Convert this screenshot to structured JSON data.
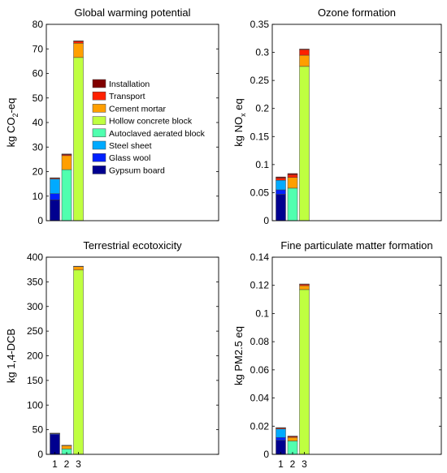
{
  "chart_data": [
    {
      "type": "bar",
      "stacked": true,
      "title": "Global warming potential",
      "ylabel": "kg CO",
      "ylabel_sub": "2",
      "ylabel_suffix": "-eq",
      "ylim": [
        0,
        80
      ],
      "yticks": [
        "0",
        "10",
        "20",
        "30",
        "40",
        "50",
        "60",
        "70",
        "80"
      ],
      "ytick_values": [
        0,
        10,
        20,
        30,
        40,
        50,
        60,
        70,
        80
      ],
      "categories": [
        "1",
        "2",
        "3"
      ],
      "show_xticks": false,
      "series": [
        {
          "name": "Gypsum board",
          "color": "#00008f",
          "values": [
            8.5,
            0,
            0
          ]
        },
        {
          "name": "Glass wool",
          "color": "#0020ff",
          "values": [
            2.5,
            0,
            0
          ]
        },
        {
          "name": "Steel sheet",
          "color": "#00aaff",
          "values": [
            6,
            0,
            0
          ]
        },
        {
          "name": "Autoclaved aerated block",
          "color": "#50ffaf",
          "values": [
            0,
            20.8,
            0
          ]
        },
        {
          "name": "Hollow concrete block",
          "color": "#bfff40",
          "values": [
            0,
            0,
            66.5
          ]
        },
        {
          "name": "Cement mortar",
          "color": "#ff9f00",
          "values": [
            0,
            5.7,
            5.8
          ]
        },
        {
          "name": "Transport",
          "color": "#ff2000",
          "values": [
            0.3,
            0.4,
            0.8
          ]
        },
        {
          "name": "Installation",
          "color": "#800000",
          "values": [
            0.2,
            0.3,
            0.2
          ]
        }
      ]
    },
    {
      "type": "bar",
      "stacked": true,
      "title": "Ozone formation",
      "ylabel": "kg NO",
      "ylabel_sub": "x",
      "ylabel_suffix": " eq",
      "ylim": [
        0,
        0.35
      ],
      "yticks": [
        "0",
        "0.05",
        "0.1",
        "0.15",
        "0.2",
        "0.25",
        "0.3",
        "0.35"
      ],
      "ytick_values": [
        0,
        0.05,
        0.1,
        0.15,
        0.2,
        0.25,
        0.3,
        0.35
      ],
      "categories": [
        "1",
        "2",
        "3"
      ],
      "show_xticks": false,
      "series": [
        {
          "name": "Gypsum board",
          "color": "#00008f",
          "values": [
            0.047,
            0,
            0
          ]
        },
        {
          "name": "Glass wool",
          "color": "#0020ff",
          "values": [
            0.008,
            0,
            0
          ]
        },
        {
          "name": "Steel sheet",
          "color": "#00aaff",
          "values": [
            0.017,
            0,
            0
          ]
        },
        {
          "name": "Autoclaved aerated block",
          "color": "#50ffaf",
          "values": [
            0,
            0.058,
            0
          ]
        },
        {
          "name": "Hollow concrete block",
          "color": "#bfff40",
          "values": [
            0,
            0,
            0.275
          ]
        },
        {
          "name": "Cement mortar",
          "color": "#ff9f00",
          "values": [
            0,
            0.019,
            0.02
          ]
        },
        {
          "name": "Transport",
          "color": "#ff2000",
          "values": [
            0.004,
            0.005,
            0.01
          ]
        },
        {
          "name": "Installation",
          "color": "#800000",
          "values": [
            0.002,
            0.002,
            0.001
          ]
        }
      ]
    },
    {
      "type": "bar",
      "stacked": true,
      "title": "Terrestrial ecotoxicity",
      "ylabel": "kg 1,4-DCB",
      "ylabel_sub": "",
      "ylabel_suffix": "",
      "ylim": [
        0,
        400
      ],
      "yticks": [
        "0",
        "50",
        "100",
        "150",
        "200",
        "250",
        "300",
        "350",
        "400"
      ],
      "ytick_values": [
        0,
        50,
        100,
        150,
        200,
        250,
        300,
        350,
        400
      ],
      "categories": [
        "1",
        "2",
        "3"
      ],
      "show_xticks": true,
      "series": [
        {
          "name": "Gypsum board",
          "color": "#00008f",
          "values": [
            40,
            0,
            0
          ]
        },
        {
          "name": "Glass wool",
          "color": "#0020ff",
          "values": [
            2,
            0,
            0
          ]
        },
        {
          "name": "Steel sheet",
          "color": "#00aaff",
          "values": [
            0.5,
            0,
            0
          ]
        },
        {
          "name": "Autoclaved aerated block",
          "color": "#50ffaf",
          "values": [
            0,
            11,
            0
          ]
        },
        {
          "name": "Hollow concrete block",
          "color": "#bfff40",
          "values": [
            0,
            0,
            374
          ]
        },
        {
          "name": "Cement mortar",
          "color": "#ff9f00",
          "values": [
            0,
            7,
            7
          ]
        },
        {
          "name": "Transport",
          "color": "#ff2000",
          "values": [
            0.2,
            0.3,
            0.5
          ]
        },
        {
          "name": "Installation",
          "color": "#800000",
          "values": [
            0.2,
            0.2,
            0.2
          ]
        }
      ]
    },
    {
      "type": "bar",
      "stacked": true,
      "title": "Fine particulate matter formation",
      "ylabel": "kg PM2.5 eq",
      "ylabel_sub": "",
      "ylabel_suffix": "",
      "ylim": [
        0,
        0.14
      ],
      "yticks": [
        "0",
        "0.02",
        "0.04",
        "0.06",
        "0.08",
        "0.1",
        "0.12",
        "0.14"
      ],
      "ytick_values": [
        0,
        0.02,
        0.04,
        0.06,
        0.08,
        0.1,
        0.12,
        0.14
      ],
      "categories": [
        "1",
        "2",
        "3"
      ],
      "show_xticks": true,
      "series": [
        {
          "name": "Gypsum board",
          "color": "#00008f",
          "values": [
            0.01,
            0,
            0
          ]
        },
        {
          "name": "Glass wool",
          "color": "#0020ff",
          "values": [
            0.002,
            0,
            0
          ]
        },
        {
          "name": "Steel sheet",
          "color": "#00aaff",
          "values": [
            0.006,
            0,
            0
          ]
        },
        {
          "name": "Autoclaved aerated block",
          "color": "#50ffaf",
          "values": [
            0,
            0.0095,
            0
          ]
        },
        {
          "name": "Hollow concrete block",
          "color": "#bfff40",
          "values": [
            0,
            0,
            0.117
          ]
        },
        {
          "name": "Cement mortar",
          "color": "#ff9f00",
          "values": [
            0,
            0.0025,
            0.0028
          ]
        },
        {
          "name": "Transport",
          "color": "#ff2000",
          "values": [
            0.0007,
            0.0007,
            0.001
          ]
        },
        {
          "name": "Installation",
          "color": "#800000",
          "values": [
            0.0003,
            0.0003,
            0.0002
          ]
        }
      ]
    }
  ],
  "legend": {
    "placement": "inside-top-left of first panel",
    "items": [
      {
        "label": "Installation",
        "color": "#800000"
      },
      {
        "label": "Transport",
        "color": "#ff2000"
      },
      {
        "label": "Cement mortar",
        "color": "#ff9f00"
      },
      {
        "label": "Hollow concrete block",
        "color": "#bfff40"
      },
      {
        "label": "Autoclaved aerated block",
        "color": "#50ffaf"
      },
      {
        "label": "Steel sheet",
        "color": "#00aaff"
      },
      {
        "label": "Glass wool",
        "color": "#0020ff"
      },
      {
        "label": "Gypsum board",
        "color": "#00008f"
      }
    ]
  }
}
